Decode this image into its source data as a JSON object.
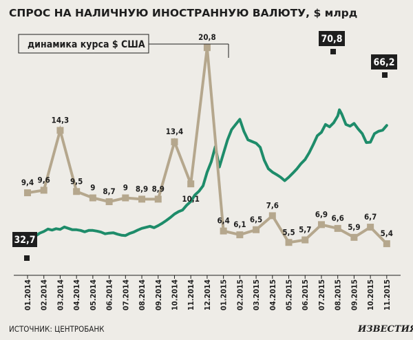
{
  "title": "СПРОС НА НАЛИЧНУЮ ИНОСТРАННУЮ ВАЛЮТУ, $ млрд",
  "legend_label": "динамика курса $ США",
  "source": "ИСТОЧНИК: ЦЕНТРОБАНК",
  "brand": "ИЗВЕСТИЯ",
  "colors": {
    "demand": "#b5a78d",
    "rate": "#1e8c6a",
    "text": "#1e1e1e",
    "background": "#eeece7"
  },
  "chart_data": {
    "type": "line",
    "x_ticks": [
      "01.2014",
      "02.2014",
      "03.2014",
      "04.2014",
      "05.2014",
      "06.2014",
      "07.2014",
      "08.2014",
      "09.2014",
      "10.2014",
      "11.2014",
      "12.2014",
      "01.2015",
      "02.2015",
      "03.2015",
      "04.2015",
      "05.2015",
      "06.2015",
      "07.2015",
      "08.2015",
      "09.2015",
      "10.2015",
      "11.2015"
    ],
    "demand": {
      "labels": [
        "9,4",
        "9,6",
        "14,3",
        "9,5",
        "9",
        "8,7",
        "9",
        "8,9",
        "8,9",
        "13,4",
        "10,1",
        "20,8",
        "6,4",
        "6,1",
        "6,5",
        "7,6",
        "5,5",
        "5,7",
        "6,9",
        "6,6",
        "5,9",
        "6,7",
        "5,4"
      ],
      "values": [
        9.4,
        9.6,
        14.3,
        9.5,
        9,
        8.7,
        9,
        8.9,
        8.9,
        13.4,
        10.1,
        20.8,
        6.4,
        6.1,
        6.5,
        7.6,
        5.5,
        5.7,
        6.9,
        6.6,
        5.9,
        6.7,
        5.4
      ]
    },
    "usd_rate": {
      "annotations": [
        {
          "label": "32,7",
          "value": 32.7,
          "x": 0
        },
        {
          "label": "70,8",
          "value": 70.8,
          "x": 19.1
        },
        {
          "label": "66,2",
          "value": 66.2,
          "x": 22
        }
      ],
      "points": [
        [
          0,
          32.7
        ],
        [
          0.25,
          33.1
        ],
        [
          0.5,
          33.8
        ],
        [
          0.75,
          34.6
        ],
        [
          1,
          35.1
        ],
        [
          1.25,
          35.8
        ],
        [
          1.5,
          35.5
        ],
        [
          1.75,
          35.9
        ],
        [
          2,
          35.7
        ],
        [
          2.25,
          36.4
        ],
        [
          2.5,
          36.0
        ],
        [
          2.75,
          35.6
        ],
        [
          3,
          35.6
        ],
        [
          3.25,
          35.4
        ],
        [
          3.5,
          35.0
        ],
        [
          3.75,
          35.4
        ],
        [
          4,
          35.4
        ],
        [
          4.25,
          35.2
        ],
        [
          4.5,
          34.9
        ],
        [
          4.75,
          34.4
        ],
        [
          5,
          34.6
        ],
        [
          5.25,
          34.7
        ],
        [
          5.5,
          34.3
        ],
        [
          5.75,
          34.0
        ],
        [
          6,
          33.9
        ],
        [
          6.25,
          34.5
        ],
        [
          6.5,
          34.9
        ],
        [
          6.75,
          35.5
        ],
        [
          7,
          36.0
        ],
        [
          7.25,
          36.3
        ],
        [
          7.5,
          36.6
        ],
        [
          7.75,
          36.2
        ],
        [
          8,
          36.8
        ],
        [
          8.25,
          37.5
        ],
        [
          8.5,
          38.3
        ],
        [
          8.75,
          39.2
        ],
        [
          9,
          40.2
        ],
        [
          9.25,
          40.9
        ],
        [
          9.5,
          41.4
        ],
        [
          9.75,
          42.8
        ],
        [
          10,
          43.9
        ],
        [
          10.25,
          45.8
        ],
        [
          10.5,
          46.9
        ],
        [
          10.75,
          48.5
        ],
        [
          11,
          52.5
        ],
        [
          11.25,
          55.5
        ],
        [
          11.5,
          60.0
        ],
        [
          11.75,
          54.0
        ],
        [
          12,
          58.0
        ],
        [
          12.25,
          62.0
        ],
        [
          12.5,
          65.0
        ],
        [
          12.75,
          66.5
        ],
        [
          13,
          68.0
        ],
        [
          13.25,
          64.5
        ],
        [
          13.5,
          62.0
        ],
        [
          13.75,
          61.5
        ],
        [
          14,
          61.0
        ],
        [
          14.25,
          59.8
        ],
        [
          14.5,
          56.0
        ],
        [
          14.75,
          53.5
        ],
        [
          15,
          52.5
        ],
        [
          15.25,
          51.8
        ],
        [
          15.5,
          51.0
        ],
        [
          15.75,
          50.0
        ],
        [
          16,
          51.0
        ],
        [
          16.25,
          52.2
        ],
        [
          16.5,
          53.5
        ],
        [
          16.75,
          55.0
        ],
        [
          17,
          56.2
        ],
        [
          17.25,
          58.2
        ],
        [
          17.5,
          60.6
        ],
        [
          17.75,
          63.2
        ],
        [
          18,
          64.2
        ],
        [
          18.25,
          66.5
        ],
        [
          18.5,
          65.8
        ],
        [
          18.75,
          67.0
        ],
        [
          19,
          69.0
        ],
        [
          19.1,
          70.8
        ],
        [
          19.25,
          69.5
        ],
        [
          19.5,
          66.5
        ],
        [
          19.75,
          66.0
        ],
        [
          20,
          66.8
        ],
        [
          20.25,
          65.2
        ],
        [
          20.5,
          63.8
        ],
        [
          20.75,
          61.2
        ],
        [
          21,
          61.3
        ],
        [
          21.25,
          63.8
        ],
        [
          21.5,
          64.5
        ],
        [
          21.75,
          64.8
        ],
        [
          22,
          66.2
        ]
      ]
    }
  }
}
